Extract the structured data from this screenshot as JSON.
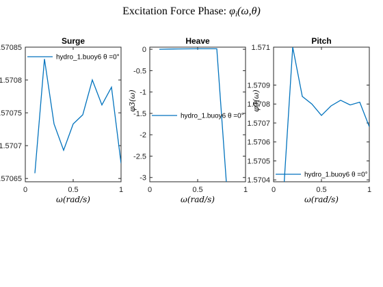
{
  "figure": {
    "title": "Excitation Force Phase:  φi(ω,θ)",
    "line_color": "#0072BD"
  },
  "chart_data": [
    {
      "type": "line",
      "title": "Surge",
      "xlabel": "ω(rad/s)",
      "ylabel": "",
      "xlim": [
        0,
        1
      ],
      "ylim": [
        1.570645,
        1.57085
      ],
      "x_ticks": [
        "0",
        "0.5",
        "1"
      ],
      "y_ticks": [
        {
          "value": 1.57085,
          "label": "1.57085"
        },
        {
          "value": 1.5708,
          "label": "1.5708"
        },
        {
          "value": 1.57075,
          "label": "1.57075"
        },
        {
          "value": 1.5707,
          "label": "1.5707"
        },
        {
          "value": 1.57065,
          "label": "1.57065"
        }
      ],
      "legend": {
        "label": "hydro_1.buoy6 θ =0°",
        "position": "top"
      },
      "series": [
        {
          "name": "hydro_1.buoy6 θ =0°",
          "x": [
            0.1,
            0.2,
            0.3,
            0.4,
            0.5,
            0.6,
            0.7,
            0.8,
            0.9,
            1.0
          ],
          "y": [
            1.570658,
            1.570832,
            1.570733,
            1.570693,
            1.570733,
            1.570747,
            1.5708,
            1.570762,
            1.570789,
            1.570673
          ]
        }
      ]
    },
    {
      "type": "line",
      "title": "Heave",
      "xlabel": "ω(rad/s)",
      "ylabel": "φ3(ω)",
      "xlim": [
        0,
        1
      ],
      "ylim": [
        -3.1,
        0.05
      ],
      "x_ticks": [
        "0",
        "0.5",
        "1"
      ],
      "y_ticks": [
        {
          "value": 0,
          "label": "0"
        },
        {
          "value": -0.5,
          "label": "-0.5"
        },
        {
          "value": -1,
          "label": "-1"
        },
        {
          "value": -1.5,
          "label": "-1.5"
        },
        {
          "value": -2,
          "label": "-2"
        },
        {
          "value": -2.5,
          "label": "-2.5"
        },
        {
          "value": -3,
          "label": "-3"
        }
      ],
      "legend": {
        "label": "hydro_1.buoy6 θ =0°",
        "position": "middle"
      },
      "series": [
        {
          "name": "hydro_1.buoy6 θ =0°",
          "x": [
            0.1,
            0.2,
            0.3,
            0.4,
            0.5,
            0.6,
            0.7,
            0.8,
            0.9,
            1.0
          ],
          "y": [
            0.0,
            0.005,
            0.008,
            0.01,
            0.012,
            0.012,
            0.012,
            -3.12,
            -3.12,
            -3.11
          ]
        }
      ]
    },
    {
      "type": "line",
      "title": "Pitch",
      "xlabel": "ω(rad/s)",
      "ylabel": "φ5(ω)",
      "xlim": [
        0,
        1
      ],
      "ylim": [
        1.57039,
        1.5711
      ],
      "x_ticks": [
        "0",
        "0.5",
        "1"
      ],
      "y_ticks": [
        {
          "value": 1.5711,
          "label": "1.571"
        },
        {
          "value": 1.5709,
          "label": "1.5709"
        },
        {
          "value": 1.5708,
          "label": "1.5708"
        },
        {
          "value": 1.5707,
          "label": "1.5707"
        },
        {
          "value": 1.5706,
          "label": "1.5706"
        },
        {
          "value": 1.5705,
          "label": "1.5705"
        },
        {
          "value": 1.5704,
          "label": "1.5704"
        }
      ],
      "legend": {
        "label": "hydro_1.buoy6 θ =0°",
        "position": "bottom"
      },
      "series": [
        {
          "name": "hydro_1.buoy6 θ =0°",
          "x": [
            0.1,
            0.2,
            0.3,
            0.4,
            0.5,
            0.6,
            0.7,
            0.8,
            0.9,
            1.0
          ],
          "y": [
            1.5703,
            1.5711,
            1.57084,
            1.5708,
            1.57074,
            1.57079,
            1.57082,
            1.570795,
            1.57081,
            1.57068
          ]
        }
      ]
    }
  ]
}
